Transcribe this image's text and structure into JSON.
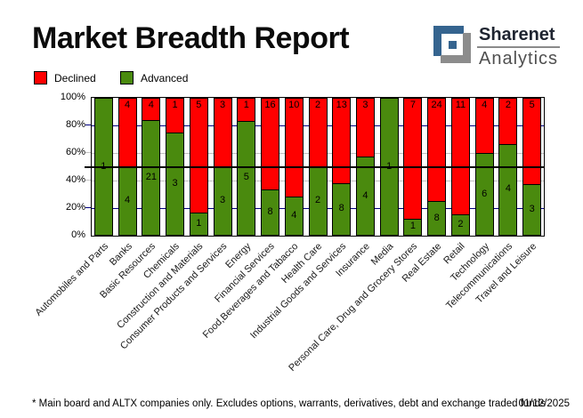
{
  "title": "Market Breadth Report",
  "logo": {
    "line1": "Sharenet",
    "line2": "Analytics",
    "blue": "#35648f",
    "gray": "#8c8c8c"
  },
  "legend": {
    "declined_label": "Declined",
    "advanced_label": "Advanced"
  },
  "footer": {
    "note": "* Main board and ALTX companies only. Excludes options, warrants, derivatives, debt and exchange traded funds",
    "date": "01/12/2025"
  },
  "chart_data": {
    "type": "bar",
    "stacked_percent": true,
    "title": "Market Breadth Report",
    "ylabel": "",
    "xlabel": "",
    "ylim": [
      0,
      100
    ],
    "y_ticks": [
      "100%",
      "80%",
      "60%",
      "40%",
      "20%",
      "0%"
    ],
    "legend_position": "top-left",
    "grid": {
      "navy_lines": [
        80,
        20
      ],
      "gray_lines": [
        60,
        40
      ],
      "midline": 50,
      "navy_color": "#000080",
      "gray_color": "#c0c0c0",
      "midline_color": "#000000"
    },
    "categories": [
      "Automobiles and Parts",
      "Banks",
      "Basic Resources",
      "Chemicals",
      "Construction and Materials",
      "Consumer Products and Services",
      "Energy",
      "Financial Services",
      "Food,Beverages and Tabacco",
      "Health Care",
      "Industrial Goods and Services",
      "Insurance",
      "Media",
      "Personal Care, Drug and Grocery Stores",
      "Real Estate",
      "Retail",
      "Technology",
      "Telecommunications",
      "Travel and Leisure"
    ],
    "series": [
      {
        "name": "Declined",
        "color": "#ff0000",
        "values": [
          0,
          4,
          4,
          1,
          5,
          3,
          1,
          16,
          10,
          2,
          13,
          3,
          0,
          7,
          24,
          11,
          4,
          2,
          5
        ]
      },
      {
        "name": "Advanced",
        "color": "#4a8a0e",
        "values": [
          1,
          4,
          21,
          3,
          1,
          3,
          5,
          8,
          4,
          2,
          8,
          4,
          1,
          1,
          8,
          2,
          6,
          4,
          3
        ]
      }
    ]
  }
}
